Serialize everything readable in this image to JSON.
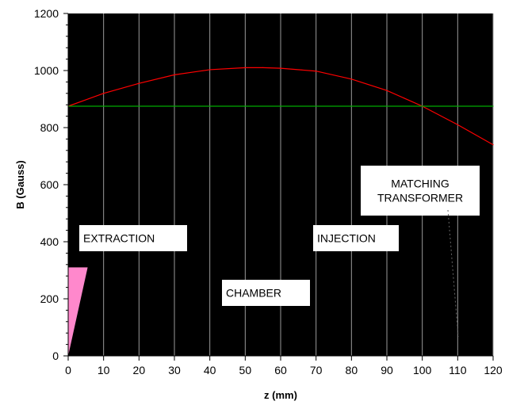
{
  "chart_data": {
    "type": "line",
    "title": "",
    "xlabel": "z (mm)",
    "ylabel": "B (Gauss)",
    "xlim": [
      0,
      120
    ],
    "ylim": [
      0,
      1200
    ],
    "x_ticks": [
      0,
      10,
      20,
      30,
      40,
      50,
      60,
      70,
      80,
      90,
      100,
      110,
      120
    ],
    "y_ticks": [
      0,
      200,
      400,
      600,
      800,
      1000,
      1200
    ],
    "grid": "vertical",
    "background": "#000000",
    "series": [
      {
        "color": "#ff0000",
        "x": [
          0,
          10,
          20,
          30,
          40,
          50,
          55,
          60,
          70,
          80,
          90,
          100,
          110,
          120
        ],
        "y": [
          875,
          920,
          955,
          985,
          1003,
          1010,
          1010,
          1008,
          998,
          970,
          930,
          875,
          810,
          740
        ]
      },
      {
        "color": "#00aa00",
        "x": [
          0,
          120
        ],
        "y": [
          875,
          875
        ]
      }
    ],
    "annotations": [
      {
        "lines": [
          "EXTRACTION"
        ]
      },
      {
        "lines": [
          "INJECTION"
        ]
      },
      {
        "lines": [
          "MATCHING",
          "TRANSFORMER"
        ]
      },
      {
        "lines": [
          "CHAMBER"
        ]
      }
    ],
    "extraction_marker": {
      "color": "#ff88cc",
      "z_top": 5.5,
      "b_top": 310
    }
  }
}
